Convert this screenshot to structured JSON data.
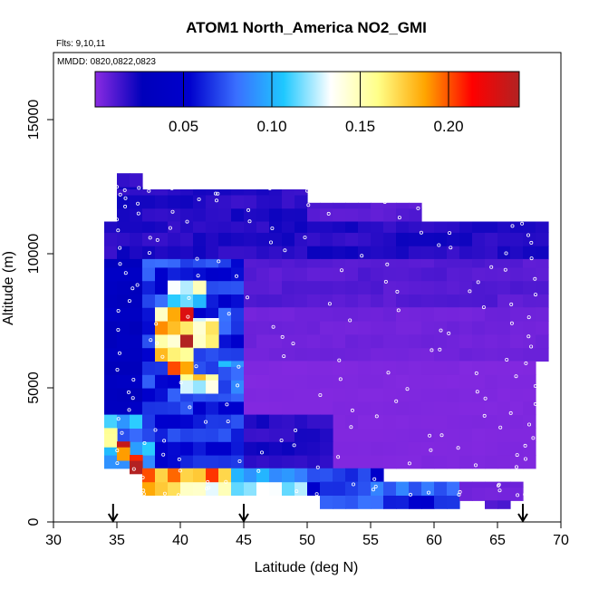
{
  "chart_data": {
    "type": "heatmap",
    "title": "ATOM1 North_America NO2_GMI",
    "flights_label": "Flts: 9,10,11",
    "dates_label": "MMDD: 0820,0822,0823",
    "xlabel": "Latitude (deg N)",
    "ylabel": "Altitude (m)",
    "xlim": [
      30,
      70
    ],
    "ylim": [
      0,
      17500
    ],
    "xticks": [
      30,
      35,
      40,
      45,
      50,
      55,
      60,
      65,
      70
    ],
    "yticks": [
      0,
      5000,
      10000,
      15000
    ],
    "colorbar": {
      "range": [
        0,
        0.24
      ],
      "ticks": [
        0.05,
        0.1,
        0.15,
        0.2
      ],
      "tick_labels": [
        "0.05",
        "0.10",
        "0.15",
        "0.20"
      ],
      "colors": [
        "#8a2be2",
        "#0000bb",
        "#0000cd",
        "#3a6fff",
        "#1ec8ff",
        "#ffffff",
        "#ffff88",
        "#ffa500",
        "#ff0000",
        "#b22222"
      ]
    },
    "markers": [
      34.7,
      45.0,
      67.0
    ],
    "regions": [
      {
        "lat": [
          35,
          37
        ],
        "alt": [
          12000,
          13000
        ],
        "value": 0.02
      },
      {
        "lat": [
          35,
          50
        ],
        "alt": [
          11200,
          12400
        ],
        "value": 0.02
      },
      {
        "lat": [
          50,
          59
        ],
        "alt": [
          11200,
          11900
        ],
        "value": 0.01
      },
      {
        "lat": [
          34,
          69
        ],
        "alt": [
          9800,
          11200
        ],
        "value": 0.02
      },
      {
        "lat": [
          34,
          37
        ],
        "alt": [
          4000,
          9800
        ],
        "value": 0.035
      },
      {
        "lat": [
          37,
          45
        ],
        "alt": [
          4000,
          9800
        ],
        "value": 0.065
      },
      {
        "lat": [
          39,
          42
        ],
        "alt": [
          8000,
          9000
        ],
        "value": 0.12
      },
      {
        "lat": [
          38,
          40
        ],
        "alt": [
          6000,
          8000
        ],
        "value": 0.17
      },
      {
        "lat": [
          40,
          41
        ],
        "alt": [
          6500,
          8000
        ],
        "value": 0.22
      },
      {
        "lat": [
          41,
          42
        ],
        "alt": [
          6500,
          7500
        ],
        "value": 0.19
      },
      {
        "lat": [
          41,
          43
        ],
        "alt": [
          6500,
          7600
        ],
        "value": 0.14
      },
      {
        "lat": [
          39,
          41
        ],
        "alt": [
          5500,
          6500
        ],
        "value": 0.17
      },
      {
        "lat": [
          40,
          43
        ],
        "alt": [
          4800,
          5500
        ],
        "value": 0.15
      },
      {
        "lat": [
          43,
          47
        ],
        "alt": [
          4800,
          6000
        ],
        "value": 0.09
      },
      {
        "lat": [
          45,
          69
        ],
        "alt": [
          8000,
          9800
        ],
        "value": 0.01
      },
      {
        "lat": [
          45,
          69
        ],
        "alt": [
          6000,
          8000
        ],
        "value": 0.005
      },
      {
        "lat": [
          45,
          68
        ],
        "alt": [
          2000,
          6000
        ],
        "value": 0.002
      },
      {
        "lat": [
          34,
          38
        ],
        "alt": [
          2000,
          4000
        ],
        "value": 0.09
      },
      {
        "lat": [
          38,
          45
        ],
        "alt": [
          2000,
          4000
        ],
        "value": 0.06
      },
      {
        "lat": [
          45,
          52
        ],
        "alt": [
          2000,
          4000
        ],
        "value": 0.02
      },
      {
        "lat": [
          34,
          35
        ],
        "alt": [
          2800,
          3500
        ],
        "value": 0.16
      },
      {
        "lat": [
          35,
          36
        ],
        "alt": [
          2300,
          3000
        ],
        "value": 0.19
      },
      {
        "lat": [
          36,
          37
        ],
        "alt": [
          1800,
          2500
        ],
        "value": 0.21
      },
      {
        "lat": [
          37,
          44
        ],
        "alt": [
          1000,
          2000
        ],
        "value": 0.17
      },
      {
        "lat": [
          44,
          50
        ],
        "alt": [
          1000,
          2000
        ],
        "value": 0.11
      },
      {
        "lat": [
          50,
          56
        ],
        "alt": [
          1000,
          2000
        ],
        "value": 0.06
      },
      {
        "lat": [
          51,
          62
        ],
        "alt": [
          500,
          1500
        ],
        "value": 0.07
      },
      {
        "lat": [
          62,
          67
        ],
        "alt": [
          800,
          1500
        ],
        "value": 0.005
      },
      {
        "lat": [
          64,
          66
        ],
        "alt": [
          500,
          800
        ],
        "value": 0.01
      }
    ]
  }
}
